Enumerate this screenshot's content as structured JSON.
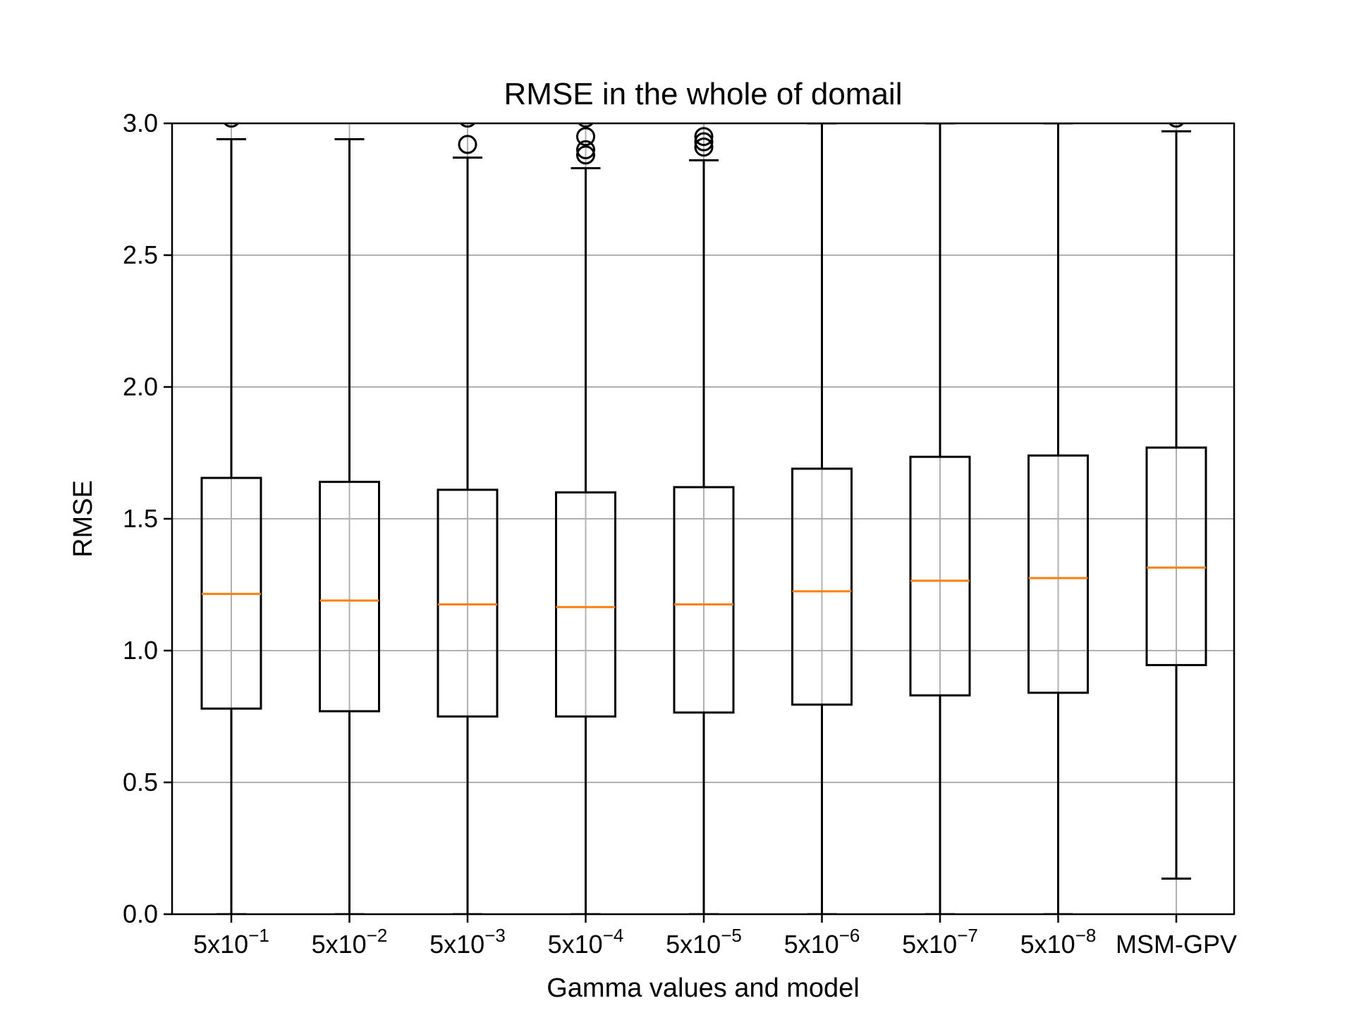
{
  "chart_data": {
    "type": "boxplot",
    "title": "RMSE in the whole of domail",
    "xlabel": "Gamma values and model",
    "ylabel": "RMSE",
    "ylim": [
      0,
      3.0
    ],
    "yticks": [
      "0.0",
      "0.5",
      "1.0",
      "1.5",
      "2.0",
      "2.5",
      "3.0"
    ],
    "ytick_values": [
      0,
      0.5,
      1.0,
      1.5,
      2.0,
      2.5,
      3.0
    ],
    "grid": true,
    "colors": {
      "box": "#000000",
      "median": "#ff7f0e",
      "grid": "#b0b0b0"
    },
    "categories": [
      {
        "base": "5x10",
        "exp": "−1"
      },
      {
        "base": "5x10",
        "exp": "−2"
      },
      {
        "base": "5x10",
        "exp": "−3"
      },
      {
        "base": "5x10",
        "exp": "−4"
      },
      {
        "base": "5x10",
        "exp": "−5"
      },
      {
        "base": "5x10",
        "exp": "−6"
      },
      {
        "base": "5x10",
        "exp": "−7"
      },
      {
        "base": "5x10",
        "exp": "−8"
      },
      {
        "base": "MSM-GPV",
        "exp": ""
      }
    ],
    "boxes": [
      {
        "whislo": 0.0,
        "q1": 0.78,
        "med": 1.215,
        "q3": 1.655,
        "whishi": 2.94,
        "fliers": [
          3.02
        ]
      },
      {
        "whislo": 0.0,
        "q1": 0.77,
        "med": 1.19,
        "q3": 1.64,
        "whishi": 2.94,
        "fliers": []
      },
      {
        "whislo": 0.0,
        "q1": 0.75,
        "med": 1.175,
        "q3": 1.61,
        "whishi": 2.87,
        "fliers": [
          3.02,
          2.92
        ]
      },
      {
        "whislo": 0.0,
        "q1": 0.75,
        "med": 1.165,
        "q3": 1.6,
        "whishi": 2.83,
        "fliers": [
          3.02,
          2.95,
          2.9,
          2.88
        ]
      },
      {
        "whislo": 0.0,
        "q1": 0.765,
        "med": 1.175,
        "q3": 1.62,
        "whishi": 2.86,
        "fliers": [
          2.95,
          2.93,
          2.91
        ]
      },
      {
        "whislo": 0.0,
        "q1": 0.795,
        "med": 1.225,
        "q3": 1.69,
        "whishi": 3.0,
        "fliers": []
      },
      {
        "whislo": 0.0,
        "q1": 0.83,
        "med": 1.265,
        "q3": 1.735,
        "whishi": 3.0,
        "fliers": []
      },
      {
        "whislo": 0.0,
        "q1": 0.84,
        "med": 1.275,
        "q3": 1.74,
        "whishi": 3.0,
        "fliers": []
      },
      {
        "whislo": 0.135,
        "q1": 0.945,
        "med": 1.315,
        "q3": 1.77,
        "whishi": 2.97,
        "fliers": [
          3.02
        ]
      }
    ]
  }
}
